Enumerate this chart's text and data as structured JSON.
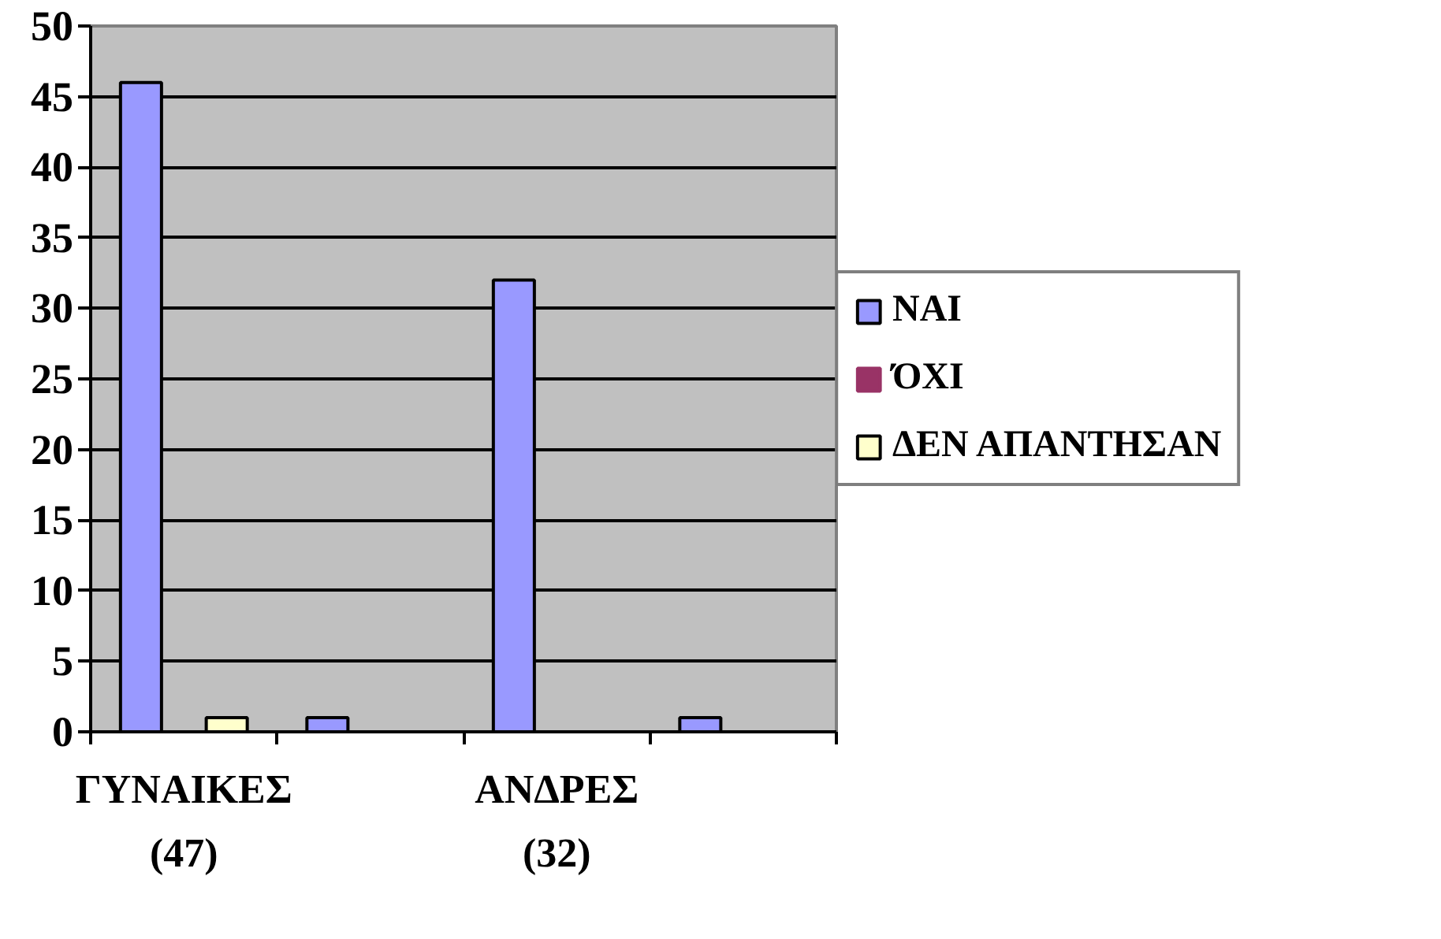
{
  "chart_data": {
    "type": "bar",
    "categories": [
      "ΓΥΝΑΙΚΕΣ (47)",
      null,
      "ΑΝΔΡΕΣ (32)",
      null
    ],
    "series": [
      {
        "name": "ΝΑΙ",
        "color": "#9999ff",
        "values": [
          46,
          1,
          32,
          1
        ]
      },
      {
        "name": "ΌΧΙ",
        "color": "#993366",
        "values": [
          0,
          0,
          0,
          0
        ]
      },
      {
        "name": "ΔΕΝ ΑΠΑΝΤΗΣΑΝ",
        "color": "#ffffcc",
        "values": [
          1,
          0,
          0,
          0
        ]
      }
    ],
    "ylim": [
      0,
      50
    ],
    "yticks": [
      0,
      5,
      10,
      15,
      20,
      25,
      30,
      35,
      40,
      45,
      50
    ],
    "grid": "y",
    "legend": "right"
  }
}
